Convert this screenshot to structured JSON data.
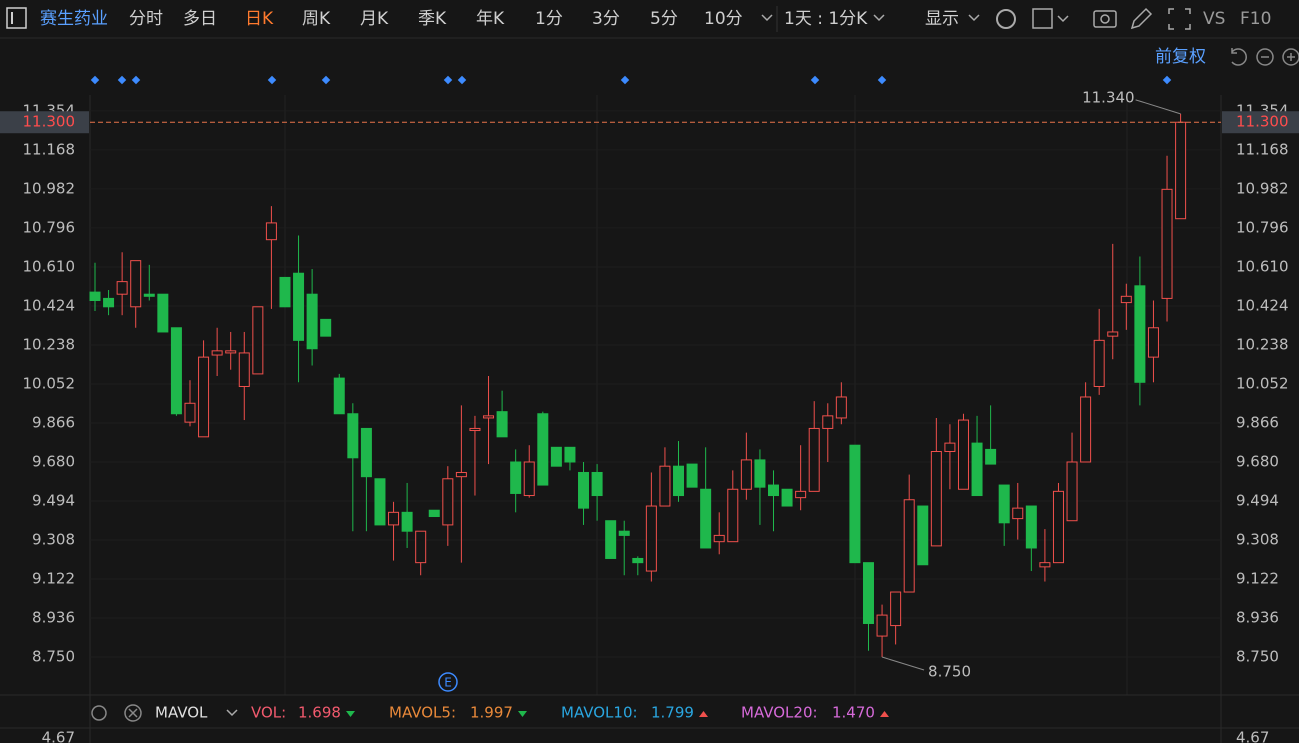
{
  "toolbar": {
    "stock_name": "赛生药业",
    "tabs": [
      "分时",
      "多日",
      "日K",
      "周K",
      "月K",
      "季K",
      "年K",
      "1分",
      "3分",
      "5分",
      "10分"
    ],
    "active_tab": "日K",
    "period": "1天 : 1分K",
    "display": "显示",
    "vs": "VS",
    "f10": "F10",
    "adjust": "前复权"
  },
  "chart_data": {
    "type": "candlestick",
    "open": [
      10.49,
      10.46,
      10.48,
      10.42,
      10.48,
      10.48,
      10.32,
      9.87,
      9.8,
      10.19,
      10.2,
      10.04,
      10.1,
      10.74,
      10.56,
      10.58,
      10.48,
      10.36,
      10.08,
      9.91,
      9.84,
      9.6,
      9.38,
      9.44,
      9.2,
      9.45,
      9.38,
      9.61,
      9.83,
      9.89,
      9.92,
      9.68,
      9.52,
      9.91,
      9.75,
      9.75,
      9.63,
      9.63,
      9.4,
      9.35,
      9.22,
      9.16,
      9.47,
      9.66,
      9.67,
      9.55,
      9.3,
      9.3,
      9.55,
      9.69,
      9.57,
      9.55,
      9.51,
      9.54,
      9.84,
      9.89,
      9.76,
      9.2,
      8.85,
      8.9,
      9.06,
      9.47,
      9.28,
      9.73,
      9.55,
      9.77,
      9.74,
      9.57,
      9.41,
      9.47,
      9.18,
      9.2,
      9.4,
      9.68,
      10.04,
      10.28,
      10.44,
      10.52,
      10.18,
      10.46,
      10.84
    ],
    "high": [
      10.63,
      10.5,
      10.68,
      10.64,
      10.62,
      10.48,
      10.32,
      10.07,
      10.26,
      10.32,
      10.3,
      10.3,
      10.42,
      10.9,
      10.56,
      10.76,
      10.6,
      10.36,
      10.1,
      9.96,
      9.84,
      9.6,
      9.49,
      9.58,
      9.35,
      9.45,
      9.66,
      9.95,
      9.9,
      10.09,
      10.02,
      9.74,
      9.76,
      9.92,
      9.75,
      9.75,
      9.68,
      9.67,
      9.4,
      9.4,
      9.23,
      9.63,
      9.75,
      9.78,
      9.67,
      9.75,
      9.44,
      9.64,
      9.82,
      9.74,
      9.64,
      9.55,
      9.76,
      9.97,
      9.96,
      10.06,
      9.76,
      9.2,
      9.0,
      9.06,
      9.62,
      9.47,
      9.89,
      9.86,
      9.91,
      9.9,
      9.95,
      9.57,
      9.58,
      9.47,
      9.36,
      9.58,
      9.82,
      10.06,
      10.41,
      10.72,
      10.53,
      10.66,
      10.45,
      11.14,
      11.34
    ],
    "low": [
      10.4,
      10.38,
      10.38,
      10.32,
      10.45,
      10.3,
      9.9,
      9.85,
      9.8,
      10.09,
      10.12,
      9.88,
      10.1,
      10.41,
      10.42,
      10.06,
      10.14,
      10.28,
      9.91,
      9.35,
      9.35,
      9.38,
      9.21,
      9.27,
      9.14,
      9.42,
      9.28,
      9.2,
      9.52,
      9.67,
      9.8,
      9.44,
      9.51,
      9.57,
      9.66,
      9.64,
      9.38,
      9.4,
      9.22,
      9.14,
      9.14,
      9.11,
      9.47,
      9.49,
      9.56,
      9.27,
      9.24,
      9.3,
      9.5,
      9.38,
      9.35,
      9.47,
      9.45,
      9.54,
      9.68,
      9.86,
      9.2,
      8.78,
      8.75,
      8.81,
      9.06,
      9.19,
      9.28,
      9.55,
      9.55,
      9.52,
      9.67,
      9.28,
      9.31,
      9.16,
      9.11,
      9.2,
      9.4,
      9.68,
      10.0,
      10.17,
      10.31,
      9.95,
      10.06,
      10.35,
      10.84
    ],
    "close": [
      10.45,
      10.42,
      10.54,
      10.64,
      10.47,
      10.3,
      9.91,
      9.96,
      10.18,
      10.21,
      10.21,
      10.2,
      10.42,
      10.82,
      10.42,
      10.26,
      10.22,
      10.28,
      9.91,
      9.7,
      9.61,
      9.38,
      9.44,
      9.35,
      9.35,
      9.42,
      9.6,
      9.63,
      9.84,
      9.9,
      9.8,
      9.53,
      9.68,
      9.57,
      9.66,
      9.68,
      9.46,
      9.52,
      9.22,
      9.33,
      9.2,
      9.47,
      9.66,
      9.52,
      9.56,
      9.27,
      9.33,
      9.55,
      9.69,
      9.56,
      9.52,
      9.47,
      9.54,
      9.84,
      9.9,
      9.99,
      9.2,
      8.91,
      8.95,
      9.06,
      9.5,
      9.19,
      9.73,
      9.77,
      9.88,
      9.52,
      9.67,
      9.39,
      9.46,
      9.27,
      9.2,
      9.54,
      9.68,
      9.99,
      10.26,
      10.3,
      10.47,
      10.06,
      10.32,
      10.98,
      11.3
    ],
    "up_color": "#f0504c",
    "down_color": "#1fb84c",
    "ylim": [
      8.569,
      11.406
    ],
    "yticks": [
      11.354,
      11.168,
      10.982,
      10.796,
      {
        "value": 10.61,
        "label": "10.610"
      },
      10.424,
      10.238,
      10.052,
      9.866,
      {
        "value": 9.68,
        "label": "9.680"
      },
      9.494,
      9.308,
      9.122,
      8.936,
      {
        "value": 8.75,
        "label": "8.750"
      }
    ],
    "grid": true,
    "current_price": {
      "value": 11.3,
      "label": "11.300"
    },
    "high_label": {
      "value": 11.34,
      "label": "11.340"
    },
    "low_label": {
      "value": 8.75,
      "label": "8.750"
    }
  },
  "volume_panel": {
    "indicator": "MAVOL",
    "items": [
      {
        "name": "VOL:",
        "value": "1.698"
      },
      {
        "name": "MAVOL5:",
        "value": "1.997"
      },
      {
        "name": "MAVOL10:",
        "value": "1.799"
      },
      {
        "name": "MAVOL20:",
        "value": "1.470"
      }
    ],
    "axis_top": "4.67",
    "event_marker": "E"
  }
}
